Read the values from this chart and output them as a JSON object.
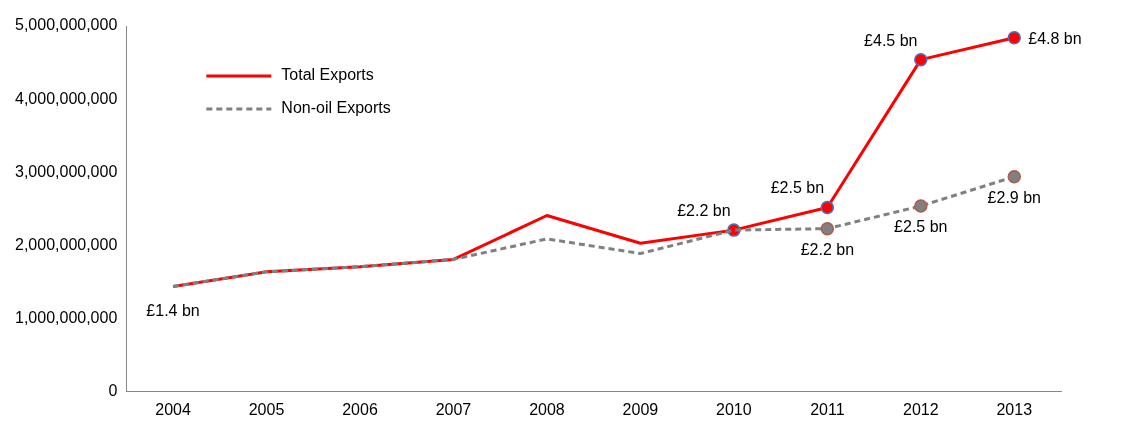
{
  "chart_data": {
    "type": "line",
    "categories": [
      "2004",
      "2005",
      "2006",
      "2007",
      "2008",
      "2009",
      "2010",
      "2011",
      "2012",
      "2013"
    ],
    "series": [
      {
        "name": "Total Exports",
        "color": "#ff0000",
        "line_style": "solid",
        "values": [
          1440000000,
          1640000000,
          1710000000,
          1810000000,
          2410000000,
          2030000000,
          2210000000,
          2520000000,
          4540000000,
          4840000000
        ],
        "value_labels": [
          null,
          null,
          null,
          null,
          null,
          null,
          "£2.2 bn",
          "£2.5 bn",
          "£4.5 bn",
          "£4.8 bn"
        ]
      },
      {
        "name": "Non-oil Exports",
        "color": "#808080",
        "line_style": "dashed",
        "values": [
          1440000000,
          1640000000,
          1710000000,
          1810000000,
          2090000000,
          1890000000,
          2210000000,
          2230000000,
          2540000000,
          2940000000
        ],
        "value_labels": [
          null,
          null,
          null,
          null,
          null,
          null,
          null,
          "£2.2 bn",
          "£2.5 bn",
          "£2.9 bn"
        ]
      }
    ],
    "ylim": [
      0,
      5000000000
    ],
    "yticks": [
      0,
      {
        "value": 1000000000,
        "label": "1,000,000,000"
      },
      {
        "value": 2000000000,
        "label": "2,000,000,000"
      },
      {
        "value": 3000000000,
        "label": "3,000,000,000"
      },
      {
        "value": 4000000000,
        "label": "4,000,000,000"
      },
      {
        "value": 5000000000,
        "label": "5,000,000,000"
      }
    ],
    "annotations": [
      {
        "text": "£1.4 bn",
        "x": "2004",
        "y": 1440000000
      }
    ],
    "grid": false,
    "legend": "top left"
  }
}
